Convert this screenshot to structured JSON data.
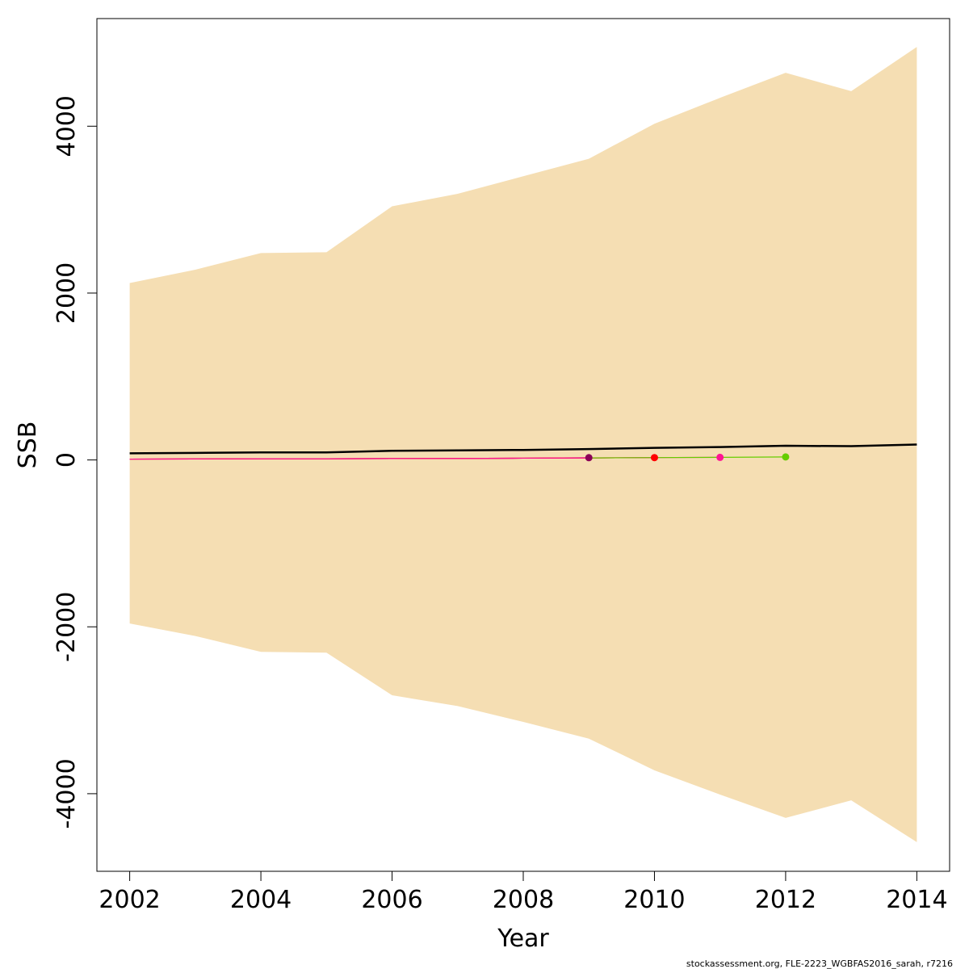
{
  "chart_data": {
    "type": "line",
    "xlabel": "Year",
    "ylabel": "SSB",
    "xlim": [
      2001.5,
      2014.5
    ],
    "ylim": [
      -4930,
      5290
    ],
    "x_ticks": [
      2002,
      2004,
      2006,
      2008,
      2010,
      2012,
      2014
    ],
    "y_ticks": [
      -4000,
      -2000,
      0,
      2000,
      4000
    ],
    "grid": false,
    "legend": "none",
    "band": {
      "color": "#F5DEB3",
      "x": [
        2002,
        2003,
        2004,
        2005,
        2006,
        2007,
        2008,
        2009,
        2010,
        2011,
        2012,
        2013,
        2014
      ],
      "upper": [
        2120,
        2280,
        2480,
        2490,
        3040,
        3190,
        3400,
        3610,
        4030,
        4340,
        4640,
        4420,
        4950
      ],
      "lower": [
        -1960,
        -2110,
        -2300,
        -2310,
        -2820,
        -2950,
        -3140,
        -3340,
        -3720,
        -4010,
        -4290,
        -4080,
        -4580
      ]
    },
    "series": [
      {
        "color": "#000000",
        "x": [
          2002,
          2003,
          2004,
          2005,
          2006,
          2007,
          2008,
          2009,
          2010,
          2011,
          2012,
          2013,
          2014
        ],
        "values": [
          80,
          85,
          90,
          90,
          110,
          115,
          120,
          130,
          145,
          155,
          170,
          165,
          185
        ]
      },
      {
        "color": "#8B0057",
        "x": [
          2002,
          2003,
          2004,
          2005,
          2006,
          2007,
          2008,
          2009
        ],
        "values": [
          10,
          12,
          14,
          14,
          17,
          18,
          21,
          27
        ],
        "point": 2009
      },
      {
        "color": "#FF0000",
        "x": [
          2002,
          2003,
          2004,
          2005,
          2006,
          2007,
          2008,
          2009,
          2010
        ],
        "values": [
          10,
          12,
          14,
          14,
          17,
          18,
          21,
          24,
          28
        ],
        "point": 2010
      },
      {
        "color": "#FF1493",
        "x": [
          2002,
          2003,
          2004,
          2005,
          2006,
          2007,
          2008,
          2009,
          2010,
          2011
        ],
        "values": [
          10,
          12,
          14,
          14,
          17,
          18,
          21,
          24,
          28,
          31
        ],
        "point": 2011
      },
      {
        "color": "#66CD00",
        "x": [
          2009,
          2010,
          2011,
          2012
        ],
        "values": [
          24,
          28,
          31,
          36
        ],
        "point": 2012
      }
    ]
  },
  "footer": "stockassessment.org, FLE-2223_WGBFAS2016_sarah, r7216"
}
